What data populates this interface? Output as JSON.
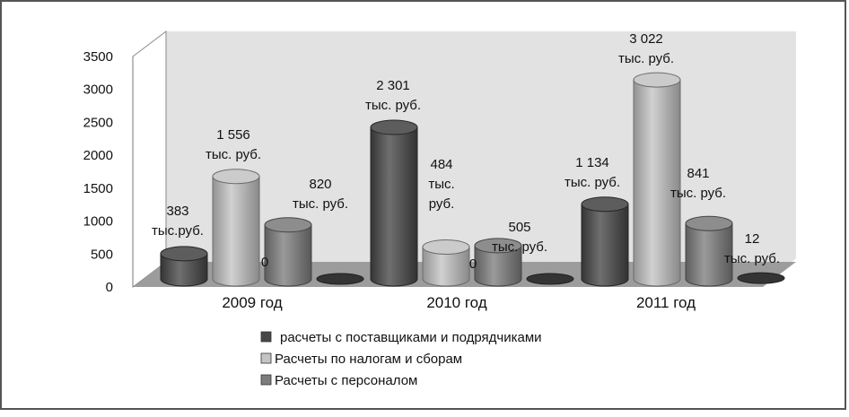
{
  "chart_data": {
    "type": "bar",
    "categories": [
      "2009 год",
      "2010 год",
      "2011 год"
    ],
    "ylim": [
      0,
      3500
    ],
    "yticks": [
      "0",
      "500",
      "1000",
      "1500",
      "2000",
      "2500",
      "3000",
      "3500"
    ],
    "series": [
      {
        "name": "расчеты с поставщиками и подрядчиками",
        "color": "#474747",
        "values": [
          383,
          2301,
          1134
        ],
        "labels": [
          [
            "383",
            "тыс.руб."
          ],
          [
            "2 301",
            "тыс. руб."
          ],
          [
            "1 134",
            "тыс. руб."
          ]
        ]
      },
      {
        "name": "Расчеты по налогам и сборам",
        "color": "#c4c4c4",
        "values": [
          1556,
          484,
          3022
        ],
        "labels": [
          [
            "1 556",
            "тыс. руб."
          ],
          [
            "484",
            "тыс.",
            "руб."
          ],
          [
            "3 022",
            "тыс. руб."
          ]
        ]
      },
      {
        "name": "Расчеты с персоналом",
        "color": "#7d7d7d",
        "values": [
          820,
          505,
          841
        ],
        "labels": [
          [
            "820",
            "тыс. руб."
          ],
          [
            "505",
            "тыс. руб."
          ],
          [
            "841",
            "тыс. руб."
          ]
        ]
      },
      {
        "name": "",
        "color": "#3a3a3a",
        "values": [
          0,
          0,
          12
        ],
        "labels": [
          [
            "0"
          ],
          [
            "0"
          ],
          [
            "12",
            "тыс. руб."
          ]
        ]
      }
    ],
    "legend_position": "bottom-left",
    "grid": false
  }
}
